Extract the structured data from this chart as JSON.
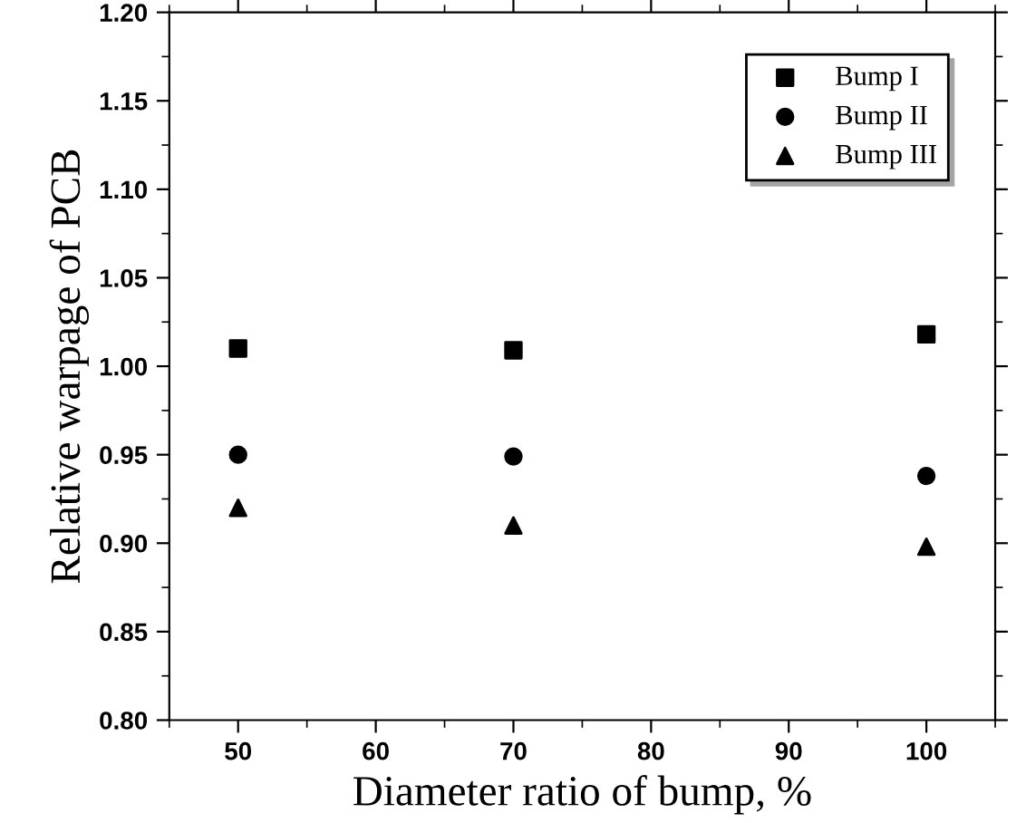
{
  "chart_data": {
    "type": "scatter",
    "xlabel": "Diameter ratio of bump, %",
    "ylabel": "Relative warpage of PCB",
    "x": [
      50,
      70,
      100
    ],
    "series": [
      {
        "name": "Bump I",
        "color": "#000000",
        "marker": "square",
        "values": [
          1.01,
          1.009,
          1.018
        ]
      },
      {
        "name": "Bump II",
        "color": "#000000",
        "marker": "circle",
        "values": [
          0.95,
          0.949,
          0.938
        ]
      },
      {
        "name": "Bump III",
        "color": "#000000",
        "marker": "triangle",
        "values": [
          0.92,
          0.91,
          0.898
        ]
      }
    ],
    "xlim": [
      45,
      105
    ],
    "ylim": [
      0.8,
      1.2
    ],
    "xticks": [
      50,
      60,
      70,
      80,
      90,
      100
    ],
    "yticks": [
      {
        "value": 0.8,
        "label": "0.80"
      },
      {
        "value": 0.85,
        "label": "0.85"
      },
      {
        "value": 0.9,
        "label": "0.90"
      },
      {
        "value": 0.95,
        "label": "0.95"
      },
      {
        "value": 1.0,
        "label": "1.00"
      },
      {
        "value": 1.05,
        "label": "1.05"
      },
      {
        "value": 1.1,
        "label": "1.10"
      },
      {
        "value": 1.15,
        "label": "1.15"
      },
      {
        "value": 1.2,
        "label": "1.20"
      }
    ],
    "grid": false,
    "legend": "top right"
  }
}
